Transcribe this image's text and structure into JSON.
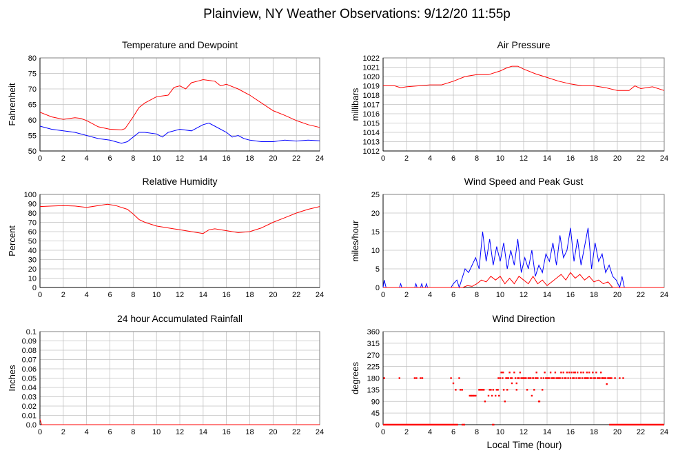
{
  "page_title": "Plainview, NY Weather Observations: 9/12/20 11:55p",
  "x_axis_label": "Local Time (hour)",
  "colors": {
    "red": "#ff0000",
    "blue": "#0000ff",
    "grid": "#c0c0c0",
    "axis": "#000000"
  },
  "chart_data": [
    {
      "id": "temperature",
      "type": "line",
      "title": "Temperature and Dewpoint",
      "ylabel": "Fahrenheit",
      "xlim": [
        0,
        24
      ],
      "ylim": [
        50,
        80
      ],
      "yticks": [
        50,
        55,
        60,
        65,
        70,
        75,
        80
      ],
      "xticks": [
        0,
        2,
        4,
        6,
        8,
        10,
        12,
        14,
        16,
        18,
        20,
        22,
        24
      ],
      "grid": true,
      "series": [
        {
          "color": "#ff0000",
          "x": [
            0,
            1,
            2,
            3,
            3.5,
            4,
            5,
            6,
            7,
            7.3,
            8,
            8.5,
            9,
            10,
            11,
            11.5,
            12,
            12.5,
            13,
            13.5,
            14,
            15,
            15.5,
            16,
            17,
            18,
            19,
            20,
            21,
            22,
            23,
            24
          ],
          "y": [
            62.5,
            61,
            60.2,
            60.7,
            60.5,
            59.8,
            57.8,
            57,
            56.8,
            57.2,
            61,
            64,
            65.5,
            67.5,
            68,
            70.5,
            71,
            70,
            72,
            72.5,
            73,
            72.5,
            71,
            71.5,
            70,
            68,
            65.5,
            63,
            61.5,
            59.8,
            58.5,
            57.6
          ]
        },
        {
          "color": "#0000ff",
          "x": [
            0,
            1,
            2,
            3,
            4,
            5,
            6,
            7,
            7.5,
            8,
            8.5,
            9,
            10,
            10.5,
            11,
            12,
            13,
            14,
            14.5,
            15,
            16,
            16.5,
            17,
            17.5,
            18,
            19,
            20,
            21,
            22,
            23,
            24
          ],
          "y": [
            58,
            57,
            56.5,
            56,
            55,
            54,
            53.5,
            52.5,
            53,
            54.5,
            56,
            56,
            55.5,
            54.5,
            56,
            57,
            56.5,
            58.5,
            59,
            58,
            56,
            54.5,
            55,
            54,
            53.5,
            53,
            53,
            53.5,
            53.2,
            53.5,
            53.3
          ]
        }
      ]
    },
    {
      "id": "pressure",
      "type": "line",
      "title": "Air Pressure",
      "ylabel": "millibars",
      "xlim": [
        0,
        24
      ],
      "ylim": [
        1012,
        1022
      ],
      "yticks": [
        1012,
        1013,
        1014,
        1015,
        1016,
        1017,
        1018,
        1019,
        1020,
        1021,
        1022
      ],
      "xticks": [
        0,
        2,
        4,
        6,
        8,
        10,
        12,
        14,
        16,
        18,
        20,
        22,
        24
      ],
      "grid": true,
      "series": [
        {
          "color": "#ff0000",
          "x": [
            0,
            1,
            1.5,
            2,
            3,
            4,
            5,
            6,
            7,
            8,
            9,
            10,
            10.5,
            11,
            11.5,
            12,
            13,
            14,
            15,
            16,
            17,
            18,
            19,
            20,
            21,
            21.5,
            22,
            23,
            24
          ],
          "y": [
            1019,
            1019,
            1018.8,
            1018.9,
            1019,
            1019.1,
            1019.1,
            1019.5,
            1020,
            1020.2,
            1020.2,
            1020.6,
            1020.9,
            1021.1,
            1021.1,
            1020.8,
            1020.3,
            1019.9,
            1019.5,
            1019.2,
            1019,
            1019,
            1018.8,
            1018.5,
            1018.5,
            1019,
            1018.7,
            1018.9,
            1018.5
          ]
        }
      ]
    },
    {
      "id": "humidity",
      "type": "line",
      "title": "Relative Humidity",
      "ylabel": "Percent",
      "xlim": [
        0,
        24
      ],
      "ylim": [
        0,
        100
      ],
      "yticks": [
        0,
        10,
        20,
        30,
        40,
        50,
        60,
        70,
        80,
        90,
        100
      ],
      "xticks": [
        0,
        2,
        4,
        6,
        8,
        10,
        12,
        14,
        16,
        18,
        20,
        22,
        24
      ],
      "grid": true,
      "series": [
        {
          "color": "#ff0000",
          "x": [
            0,
            1,
            2,
            3,
            4,
            5,
            5.8,
            6.5,
            7.5,
            8,
            8.5,
            9,
            10,
            11,
            12,
            13,
            14,
            14.5,
            15,
            16,
            17,
            18,
            19,
            20,
            21,
            22,
            23,
            24
          ],
          "y": [
            87,
            87.5,
            88,
            87.5,
            86,
            88,
            89.5,
            88,
            84,
            79,
            73,
            70,
            66,
            64,
            62,
            60,
            58,
            62,
            63,
            61,
            59,
            60,
            64,
            70,
            75,
            80,
            84,
            87
          ]
        }
      ]
    },
    {
      "id": "wind_speed",
      "type": "line",
      "title": "Wind Speed and Peak Gust",
      "ylabel": "miles/hour",
      "xlim": [
        0,
        24
      ],
      "ylim": [
        0,
        25
      ],
      "yticks": [
        0,
        5,
        10,
        15,
        20,
        25
      ],
      "xticks": [
        0,
        2,
        4,
        6,
        8,
        10,
        12,
        14,
        16,
        18,
        20,
        22,
        24
      ],
      "grid": true,
      "series": [
        {
          "color": "#0000ff",
          "x": [
            0,
            0.1,
            0.25,
            0.4,
            1.4,
            1.5,
            1.6,
            2.7,
            2.8,
            2.9,
            3.2,
            3.3,
            3.4,
            3.6,
            3.7,
            3.8,
            5.8,
            6,
            6.3,
            6.5,
            6.8,
            7,
            7.3,
            7.6,
            7.9,
            8.2,
            8.5,
            8.8,
            9.1,
            9.4,
            9.7,
            10,
            10.3,
            10.6,
            10.9,
            11.2,
            11.5,
            11.8,
            12.1,
            12.4,
            12.7,
            13,
            13.3,
            13.6,
            13.9,
            14.2,
            14.5,
            14.8,
            15.1,
            15.4,
            15.7,
            16,
            16.3,
            16.6,
            16.9,
            17.2,
            17.5,
            17.8,
            18.1,
            18.4,
            18.7,
            19,
            19.3,
            19.6,
            19.9,
            20.2,
            20.4,
            20.6,
            20.8,
            24
          ],
          "y": [
            0,
            2,
            0,
            0,
            0,
            1,
            0,
            0,
            1,
            0,
            0,
            1,
            0,
            0,
            1,
            0,
            0,
            1,
            2,
            0,
            3,
            5,
            4,
            6,
            8,
            5,
            15,
            7,
            13,
            6,
            11,
            7,
            12,
            5,
            10,
            6,
            13,
            4,
            8,
            5,
            10,
            3,
            6,
            4,
            9,
            7,
            12,
            6,
            14,
            8,
            10,
            16,
            7,
            13,
            6,
            11,
            16,
            5,
            12,
            7,
            9,
            4,
            6,
            3,
            2,
            0,
            3,
            0,
            0,
            0
          ]
        },
        {
          "color": "#ff0000",
          "x": [
            0,
            6.8,
            7.2,
            7.6,
            8,
            8.4,
            8.8,
            9.2,
            9.6,
            10,
            10.4,
            10.8,
            11.2,
            11.6,
            12,
            12.4,
            12.8,
            13.2,
            13.6,
            14,
            14.4,
            14.8,
            15.2,
            15.6,
            16,
            16.4,
            16.8,
            17.2,
            17.6,
            18,
            18.4,
            18.8,
            19.2,
            19.6,
            24
          ],
          "y": [
            0,
            0,
            0.5,
            0.3,
            1,
            2,
            1.5,
            3,
            2,
            3,
            1,
            2.5,
            1,
            3,
            2,
            1,
            3,
            1,
            2,
            0.5,
            1.5,
            2.5,
            3.5,
            2,
            4,
            2.5,
            3.5,
            2,
            3,
            1.5,
            2,
            1,
            1.5,
            0,
            0
          ]
        }
      ]
    },
    {
      "id": "rainfall",
      "type": "line",
      "title": "24 hour Accumulated Rainfall",
      "ylabel": "Inches",
      "xlim": [
        0,
        24
      ],
      "ylim": [
        0,
        0.1
      ],
      "yticks": [
        0,
        0.01,
        0.02,
        0.03,
        0.04,
        0.05,
        0.06,
        0.07,
        0.08,
        0.09,
        0.1
      ],
      "ytick_labels": [
        "0.0",
        "0.01",
        "0.02",
        "0.03",
        "0.04",
        "0.05",
        "0.06",
        "0.07",
        "0.08",
        "0.09",
        "0.1"
      ],
      "xticks": [
        0,
        2,
        4,
        6,
        8,
        10,
        12,
        14,
        16,
        18,
        20,
        22,
        24
      ],
      "grid": true,
      "series": [
        {
          "color": "#ff0000",
          "x": [
            0,
            0.05,
            0.15,
            24
          ],
          "y": [
            0.006,
            0.004,
            0,
            0
          ]
        }
      ]
    },
    {
      "id": "wind_direction",
      "type": "scatter",
      "title": "Wind Direction",
      "ylabel": "degrees",
      "xlabel": "Local Time (hour)",
      "xlim": [
        0,
        24
      ],
      "ylim": [
        0,
        360
      ],
      "yticks": [
        0,
        45,
        90,
        135,
        180,
        225,
        270,
        315,
        360
      ],
      "xticks": [
        0,
        2,
        4,
        6,
        8,
        10,
        12,
        14,
        16,
        18,
        20,
        22,
        24
      ],
      "grid": true,
      "series": [
        {
          "color": "#ff0000",
          "marker_size": 1.6,
          "x": [
            0.1,
            1.4,
            2.7,
            2.85,
            3.2,
            3.35,
            5.8,
            6.0,
            6.2,
            6.5,
            6.6,
            6.75,
            7.4,
            7.5,
            7.6,
            7.7,
            7.8,
            7.9,
            8.2,
            8.3,
            8.4,
            8.5,
            8.6,
            8.7,
            9.0,
            9.1,
            9.2,
            9.3,
            9.4,
            9.6,
            9.7,
            9.8,
            9.85,
            9.9,
            10.0,
            10.1,
            10.2,
            10.3,
            10.4,
            10.5,
            10.6,
            10.7,
            10.8,
            10.9,
            11.0,
            11.2,
            11.3,
            11.4,
            11.5,
            11.6,
            11.7,
            11.8,
            11.9,
            12.0,
            12.1,
            12.2,
            12.3,
            12.4,
            12.5,
            12.6,
            12.7,
            12.8,
            12.9,
            13.0,
            13.1,
            13.2,
            13.3,
            13.35,
            13.5,
            13.6,
            13.7,
            13.8,
            13.9,
            14.0,
            14.1,
            14.2,
            14.3,
            14.4,
            14.5,
            14.6,
            14.7,
            14.8,
            14.9,
            15.0,
            15.1,
            15.2,
            15.3,
            15.4,
            15.5,
            15.6,
            15.7,
            15.8,
            15.9,
            16.0,
            16.1,
            16.2,
            16.3,
            16.4,
            16.5,
            16.6,
            16.7,
            16.8,
            16.9,
            17.0,
            17.1,
            17.2,
            17.3,
            17.4,
            17.5,
            17.6,
            17.7,
            17.8,
            17.9,
            18.0,
            18.1,
            18.2,
            18.3,
            18.4,
            18.5,
            18.6,
            18.7,
            18.8,
            18.9,
            19.0,
            19.1,
            19.2,
            19.3,
            19.4,
            19.5,
            19.8,
            20.2,
            20.5,
            10.25,
            10.6,
            11.0,
            11.4,
            12.8,
            13.1,
            16.3,
            17.4,
            18.7
          ],
          "y": [
            180,
            180,
            180,
            180,
            180,
            180,
            180,
            160,
            135,
            180,
            135,
            135,
            112,
            112,
            112,
            112,
            112,
            112,
            135,
            135,
            135,
            135,
            135,
            90,
            112,
            135,
            135,
            112,
            135,
            112,
            135,
            135,
            180,
            112,
            180,
            202,
            180,
            135,
            90,
            180,
            135,
            180,
            202,
            180,
            180,
            202,
            180,
            135,
            180,
            180,
            202,
            180,
            180,
            180,
            180,
            180,
            135,
            180,
            180,
            180,
            112,
            180,
            135,
            180,
            202,
            180,
            90,
            90,
            180,
            135,
            180,
            202,
            180,
            180,
            180,
            180,
            202,
            180,
            180,
            180,
            202,
            180,
            180,
            180,
            180,
            202,
            180,
            202,
            180,
            180,
            202,
            180,
            202,
            180,
            202,
            180,
            180,
            202,
            180,
            202,
            180,
            180,
            202,
            180,
            202,
            180,
            180,
            202,
            180,
            202,
            180,
            180,
            202,
            180,
            180,
            202,
            180,
            180,
            180,
            202,
            180,
            180,
            180,
            180,
            157,
            180,
            180,
            180,
            180,
            180,
            180,
            180,
            202,
            180,
            160,
            160,
            180,
            180,
            202,
            180,
            180
          ]
        },
        {
          "color": "#ff0000",
          "type": "baseline",
          "marker_size": 1.6,
          "segments": [
            [
              0,
              6.4
            ],
            [
              6.7,
              7.0
            ],
            [
              9.3,
              9.5
            ],
            [
              19.3,
              24
            ]
          ],
          "y": 0
        }
      ]
    }
  ]
}
